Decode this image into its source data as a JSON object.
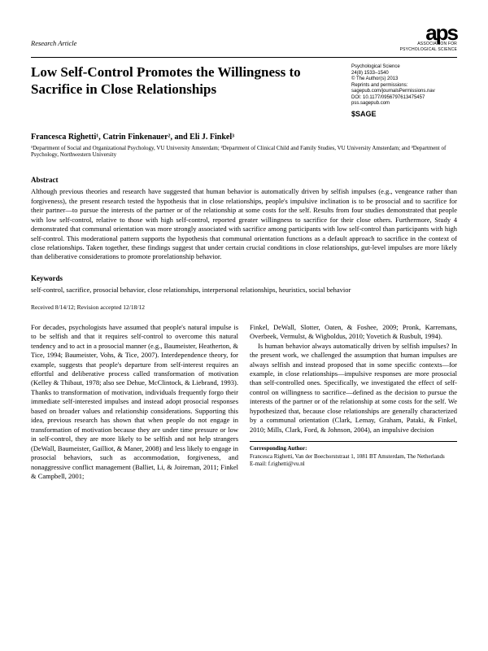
{
  "header": {
    "research_label": "Research Article",
    "logo_text": "aps",
    "logo_sub1": "ASSOCIATION FOR",
    "logo_sub2": "PSYCHOLOGICAL SCIENCE"
  },
  "title": "Low Self-Control Promotes the Willingness to Sacrifice in Close Relationships",
  "meta": {
    "line1": "Psychological Science",
    "line2": "24(8) 1533–1540",
    "line3": "© The Author(s) 2013",
    "line4": "Reprints and permissions:",
    "line5": "sagepub.com/journalsPermissions.nav",
    "line6": "DOI: 10.1177/0956797613475457",
    "line7": "pss.sagepub.com",
    "sage": "SAGE"
  },
  "authors": "Francesca Righetti¹, Catrin Finkenauer², and Eli J. Finkel³",
  "affiliations": "¹Department of Social and Organizational Psychology, VU University Amsterdam; ²Department of Clinical Child and Family Studies, VU University Amsterdam; and ³Department of Psychology, Northwestern University",
  "abstract": {
    "heading": "Abstract",
    "body": "Although previous theories and research have suggested that human behavior is automatically driven by selfish impulses (e.g., vengeance rather than forgiveness), the present research tested the hypothesis that in close relationships, people's impulsive inclination is to be prosocial and to sacrifice for their partner—to pursue the interests of the partner or of the relationship at some costs for the self. Results from four studies demonstrated that people with low self-control, relative to those with high self-control, reported greater willingness to sacrifice for their close others. Furthermore, Study 4 demonstrated that communal orientation was more strongly associated with sacrifice among participants with low self-control than participants with high self-control. This moderational pattern supports the hypothesis that communal orientation functions as a default approach to sacrifice in the context of close relationships. Taken together, these findings suggest that under certain crucial conditions in close relationships, gut-level impulses are more likely than deliberative considerations to promote prorelationship behavior."
  },
  "keywords": {
    "heading": "Keywords",
    "body": "self-control, sacrifice, prosocial behavior, close relationships, interpersonal relationships, heuristics, social behavior"
  },
  "dates": "Received 8/14/12; Revision accepted 12/18/12",
  "body": {
    "col1": "For decades, psychologists have assumed that people's natural impulse is to be selfish and that it requires self-control to overcome this natural tendency and to act in a prosocial manner (e.g., Baumeister, Heatherton, & Tice, 1994; Baumeister, Vohs, & Tice, 2007). Interdependence theory, for example, suggests that people's departure from self-interest requires an effortful and deliberative process called transformation of motivation (Kelley & Thibaut, 1978; also see Dehue, McClintock, & Liebrand, 1993). Thanks to transformation of motivation, individuals frequently forgo their immediate self-interested impulses and instead adopt prosocial responses based on broader values and relationship considerations. Supporting this idea, previous research has shown that when people do not engage in transformation of motivation because they are under time pressure or low in self-control, they are more likely to be selfish and not help strangers (DeWall, Baumeister, Gailliot, & Maner, 2008) and less likely to engage in prosocial behaviors, such as accommodation, forgiveness, and nonaggressive conflict management (Balliet, Li, & Joireman, 2011; Finkel & Campbell, 2001;",
    "col2_p1": "Finkel, DeWall, Slotter, Oaten, & Foshee, 2009; Pronk, Karremans, Overbeek, Vermulst, & Wigboldus, 2010; Yovetich & Rusbult, 1994).",
    "col2_p2": "Is human behavior always automatically driven by selfish impulses? In the present work, we challenged the assumption that human impulses are always selfish and instead proposed that in some specific contexts—for example, in close relationships—impulsive responses are more prosocial than self-controlled ones. Specifically, we investigated the effect of self-control on willingness to sacrifice—defined as the decision to pursue the interests of the partner or of the relationship at some costs for the self. We hypothesized that, because close relationships are generally characterized by a communal orientation (Clark, Lemay, Graham, Pataki, & Finkel, 2010; Mills, Clark, Ford, & Johnson, 2004), an impulsive decision"
  },
  "corresponding": {
    "heading": "Corresponding Author:",
    "line1": "Francesca Righetti, Van der Boechorststraat 1, 1081 BT Amsterdam, The Netherlands",
    "line2": "E-mail: f.righetti@vu.nl"
  }
}
